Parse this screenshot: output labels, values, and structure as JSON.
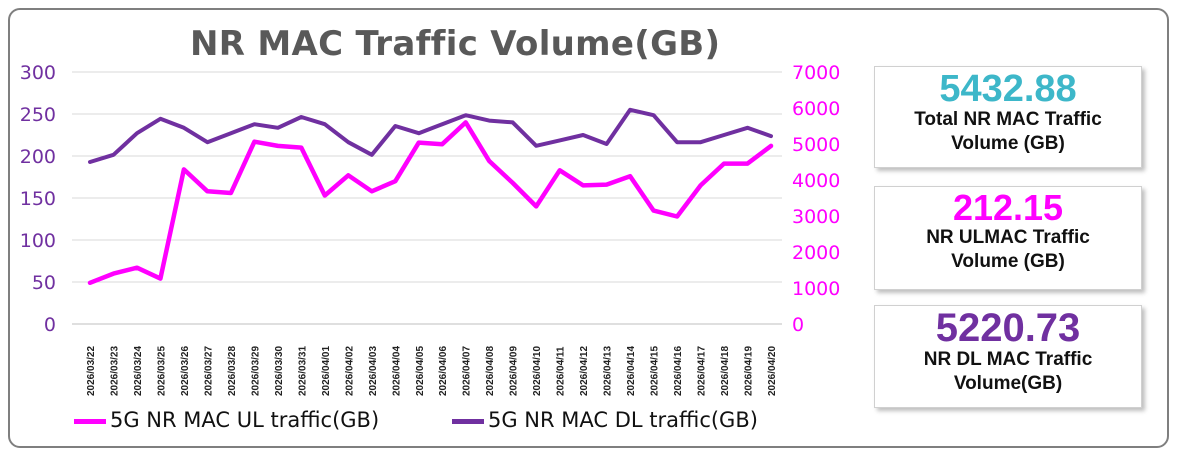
{
  "chart_data": {
    "type": "line",
    "title": "NR MAC Traffic Volume(GB)",
    "categories": [
      "2026/03/22",
      "2026/03/23",
      "2026/03/24",
      "2026/03/25",
      "2026/03/26",
      "2026/03/27",
      "2026/03/28",
      "2026/03/29",
      "2026/03/30",
      "2026/03/31",
      "2026/04/01",
      "2026/04/02",
      "2026/04/03",
      "2026/04/04",
      "2026/04/05",
      "2026/04/06",
      "2026/04/07",
      "2026/04/08",
      "2026/04/09",
      "2026/04/10",
      "2026/04/11",
      "2026/04/12",
      "2026/04/13",
      "2026/04/14",
      "2026/04/15",
      "2026/04/16",
      "2026/04/17",
      "2026/04/18",
      "2026/04/19",
      "2026/04/20"
    ],
    "series": [
      {
        "name": "5G NR MAC UL traffic(GB)",
        "axis": "left",
        "color": "#ff00ff",
        "values": [
          49,
          60,
          67,
          54,
          184,
          158,
          156,
          217,
          212,
          210,
          153,
          177,
          158,
          170,
          216,
          214,
          240,
          194,
          168,
          140,
          183,
          165,
          166,
          176,
          135,
          128,
          165,
          191,
          191,
          212
        ]
      },
      {
        "name": "5G NR MAC DL traffic(GB)",
        "axis": "right",
        "color": "#7030a0",
        "values": [
          4500,
          4700,
          5300,
          5700,
          5450,
          5050,
          5300,
          5550,
          5450,
          5750,
          5550,
          5050,
          4700,
          5500,
          5300,
          5550,
          5800,
          5650,
          5600,
          4950,
          5100,
          5250,
          5000,
          5950,
          5800,
          5050,
          5050,
          5250,
          5450,
          5220
        ]
      }
    ],
    "y_left": {
      "min": 0,
      "max": 300,
      "ticks": [
        "0",
        "50",
        "100",
        "150",
        "200",
        "250",
        "300"
      ]
    },
    "y_right": {
      "min": 0,
      "max": 7000,
      "ticks": [
        "0",
        "1000",
        "2000",
        "3000",
        "4000",
        "5000",
        "6000",
        "7000"
      ]
    },
    "grid": true,
    "legend_position": "bottom"
  },
  "colors": {
    "ul": "#ff00ff",
    "dl": "#7030a0",
    "total": "#3db7c9",
    "axis_left": "#7030a0",
    "axis_right": "#ff00ff"
  },
  "kpis": {
    "total": {
      "value": "5432.88",
      "label_line1": "Total NR MAC Traffic",
      "label_line2": "Volume (GB)"
    },
    "ul": {
      "value": "212.15",
      "label_line1": "NR ULMAC Traffic",
      "label_line2": "Volume (GB)"
    },
    "dl": {
      "value": "5220.73",
      "label_line1": "NR DL MAC Traffic",
      "label_line2": "Volume(GB)"
    }
  },
  "legend": {
    "ul_label": "5G NR MAC UL traffic(GB)",
    "dl_label": "5G NR MAC DL traffic(GB)"
  }
}
